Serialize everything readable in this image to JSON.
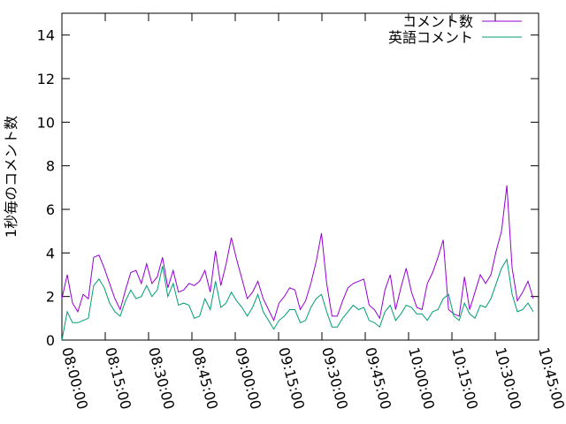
{
  "chart_data": {
    "type": "line",
    "title": "",
    "xlabel": "",
    "ylabel": "1秒毎のコメント数",
    "ylim": [
      0,
      15
    ],
    "xlim": [
      "08:00:00",
      "10:45:00"
    ],
    "grid": false,
    "legend_position": "top-right",
    "y_ticks": [
      "0",
      "2",
      "4",
      "6",
      "8",
      "10",
      "12",
      "14"
    ],
    "x_ticks": [
      "08:00:00",
      "08:15:00",
      "08:30:00",
      "08:45:00",
      "09:00:00",
      "09:15:00",
      "09:30:00",
      "09:45:00",
      "10:00:00",
      "10:15:00",
      "10:30:00",
      "10:45:00"
    ],
    "series": [
      {
        "name": "コメント数",
        "color": "#9400d3",
        "points": [
          [
            "08:00:00",
            1.9
          ],
          [
            "08:01:50",
            3.0
          ],
          [
            "08:03:40",
            1.7
          ],
          [
            "08:05:30",
            1.3
          ],
          [
            "08:07:20",
            2.1
          ],
          [
            "08:09:10",
            1.9
          ],
          [
            "08:11:00",
            3.8
          ],
          [
            "08:12:50",
            3.9
          ],
          [
            "08:14:40",
            3.3
          ],
          [
            "08:16:30",
            2.6
          ],
          [
            "08:18:20",
            1.9
          ],
          [
            "08:20:10",
            1.4
          ],
          [
            "08:22:00",
            2.3
          ],
          [
            "08:23:50",
            3.1
          ],
          [
            "08:25:40",
            3.2
          ],
          [
            "08:27:30",
            2.6
          ],
          [
            "08:29:20",
            3.5
          ],
          [
            "08:31:10",
            2.6
          ],
          [
            "08:33:00",
            2.9
          ],
          [
            "08:34:50",
            3.8
          ],
          [
            "08:36:40",
            2.4
          ],
          [
            "08:38:30",
            3.2
          ],
          [
            "08:40:20",
            2.2
          ],
          [
            "08:42:10",
            2.3
          ],
          [
            "08:44:00",
            2.6
          ],
          [
            "08:45:50",
            2.5
          ],
          [
            "08:47:40",
            2.7
          ],
          [
            "08:49:30",
            3.2
          ],
          [
            "08:51:20",
            2.2
          ],
          [
            "08:53:10",
            4.1
          ],
          [
            "08:55:00",
            2.5
          ],
          [
            "08:56:50",
            3.5
          ],
          [
            "08:58:40",
            4.7
          ],
          [
            "09:00:30",
            3.7
          ],
          [
            "09:02:20",
            2.8
          ],
          [
            "09:04:10",
            1.9
          ],
          [
            "09:06:00",
            2.2
          ],
          [
            "09:07:50",
            2.7
          ],
          [
            "09:09:40",
            1.9
          ],
          [
            "09:11:30",
            1.4
          ],
          [
            "09:13:20",
            0.9
          ],
          [
            "09:15:10",
            1.7
          ],
          [
            "09:17:00",
            2.0
          ],
          [
            "09:18:50",
            2.4
          ],
          [
            "09:20:40",
            2.3
          ],
          [
            "09:22:30",
            1.4
          ],
          [
            "09:24:20",
            1.8
          ],
          [
            "09:26:10",
            2.6
          ],
          [
            "09:28:00",
            3.6
          ],
          [
            "09:29:50",
            4.9
          ],
          [
            "09:31:40",
            2.6
          ],
          [
            "09:33:30",
            1.1
          ],
          [
            "09:35:20",
            1.1
          ],
          [
            "09:37:10",
            1.8
          ],
          [
            "09:39:00",
            2.4
          ],
          [
            "09:40:50",
            2.6
          ],
          [
            "09:42:40",
            2.7
          ],
          [
            "09:44:30",
            2.8
          ],
          [
            "09:46:20",
            1.6
          ],
          [
            "09:48:10",
            1.4
          ],
          [
            "09:50:00",
            1.0
          ],
          [
            "09:51:50",
            2.3
          ],
          [
            "09:53:40",
            3.0
          ],
          [
            "09:55:30",
            1.4
          ],
          [
            "09:57:20",
            2.4
          ],
          [
            "09:59:10",
            3.3
          ],
          [
            "10:01:00",
            2.2
          ],
          [
            "10:02:50",
            1.5
          ],
          [
            "10:04:40",
            1.4
          ],
          [
            "10:06:30",
            2.6
          ],
          [
            "10:08:20",
            3.1
          ],
          [
            "10:10:10",
            3.8
          ],
          [
            "10:12:00",
            4.6
          ],
          [
            "10:13:50",
            1.4
          ],
          [
            "10:15:40",
            1.2
          ],
          [
            "10:17:30",
            1.1
          ],
          [
            "10:19:20",
            2.9
          ],
          [
            "10:21:10",
            1.4
          ],
          [
            "10:23:00",
            2.2
          ],
          [
            "10:24:50",
            3.0
          ],
          [
            "10:26:40",
            2.6
          ],
          [
            "10:28:30",
            3.0
          ],
          [
            "10:30:20",
            4.1
          ],
          [
            "10:32:10",
            5.0
          ],
          [
            "10:34:00",
            7.1
          ],
          [
            "10:35:50",
            3.3
          ],
          [
            "10:37:40",
            1.8
          ],
          [
            "10:39:30",
            2.2
          ],
          [
            "10:41:20",
            2.7
          ],
          [
            "10:43:10",
            1.9
          ]
        ]
      },
      {
        "name": "英語コメント",
        "color": "#009e73",
        "points": [
          [
            "08:00:00",
            0.0
          ],
          [
            "08:01:50",
            1.3
          ],
          [
            "08:03:40",
            0.8
          ],
          [
            "08:05:30",
            0.8
          ],
          [
            "08:07:20",
            0.9
          ],
          [
            "08:09:10",
            1.0
          ],
          [
            "08:11:00",
            2.5
          ],
          [
            "08:12:50",
            2.8
          ],
          [
            "08:14:40",
            2.4
          ],
          [
            "08:16:30",
            1.7
          ],
          [
            "08:18:20",
            1.3
          ],
          [
            "08:20:10",
            1.1
          ],
          [
            "08:22:00",
            1.8
          ],
          [
            "08:23:50",
            2.3
          ],
          [
            "08:25:40",
            1.9
          ],
          [
            "08:27:30",
            2.0
          ],
          [
            "08:29:20",
            2.5
          ],
          [
            "08:31:10",
            2.0
          ],
          [
            "08:33:00",
            2.3
          ],
          [
            "08:34:50",
            3.4
          ],
          [
            "08:36:40",
            2.0
          ],
          [
            "08:38:30",
            2.6
          ],
          [
            "08:40:20",
            1.6
          ],
          [
            "08:42:10",
            1.7
          ],
          [
            "08:44:00",
            1.6
          ],
          [
            "08:45:50",
            1.0
          ],
          [
            "08:47:40",
            1.1
          ],
          [
            "08:49:30",
            1.9
          ],
          [
            "08:51:20",
            1.4
          ],
          [
            "08:53:10",
            2.7
          ],
          [
            "08:55:00",
            1.5
          ],
          [
            "08:56:50",
            1.7
          ],
          [
            "08:58:40",
            2.2
          ],
          [
            "09:00:30",
            1.8
          ],
          [
            "09:02:20",
            1.5
          ],
          [
            "09:04:10",
            1.1
          ],
          [
            "09:06:00",
            1.5
          ],
          [
            "09:07:50",
            2.1
          ],
          [
            "09:09:40",
            1.3
          ],
          [
            "09:11:30",
            0.9
          ],
          [
            "09:13:20",
            0.5
          ],
          [
            "09:15:10",
            0.9
          ],
          [
            "09:17:00",
            1.1
          ],
          [
            "09:18:50",
            1.4
          ],
          [
            "09:20:40",
            1.4
          ],
          [
            "09:22:30",
            0.8
          ],
          [
            "09:24:20",
            0.9
          ],
          [
            "09:26:10",
            1.5
          ],
          [
            "09:28:00",
            1.9
          ],
          [
            "09:29:50",
            2.1
          ],
          [
            "09:31:40",
            1.3
          ],
          [
            "09:33:30",
            0.6
          ],
          [
            "09:35:20",
            0.6
          ],
          [
            "09:37:10",
            1.0
          ],
          [
            "09:39:00",
            1.3
          ],
          [
            "09:40:50",
            1.6
          ],
          [
            "09:42:40",
            1.4
          ],
          [
            "09:44:30",
            1.5
          ],
          [
            "09:46:20",
            0.9
          ],
          [
            "09:48:10",
            0.8
          ],
          [
            "09:50:00",
            0.6
          ],
          [
            "09:51:50",
            1.3
          ],
          [
            "09:53:40",
            1.6
          ],
          [
            "09:55:30",
            0.9
          ],
          [
            "09:57:20",
            1.2
          ],
          [
            "09:59:10",
            1.6
          ],
          [
            "10:01:00",
            1.5
          ],
          [
            "10:02:50",
            1.2
          ],
          [
            "10:04:40",
            1.2
          ],
          [
            "10:06:30",
            0.9
          ],
          [
            "10:08:20",
            1.3
          ],
          [
            "10:10:10",
            1.4
          ],
          [
            "10:12:00",
            1.9
          ],
          [
            "10:13:50",
            2.1
          ],
          [
            "10:15:40",
            1.1
          ],
          [
            "10:17:30",
            0.9
          ],
          [
            "10:19:20",
            1.7
          ],
          [
            "10:21:10",
            1.2
          ],
          [
            "10:23:00",
            1.0
          ],
          [
            "10:24:50",
            1.6
          ],
          [
            "10:26:40",
            1.5
          ],
          [
            "10:28:30",
            1.9
          ],
          [
            "10:30:20",
            2.6
          ],
          [
            "10:32:10",
            3.3
          ],
          [
            "10:34:00",
            3.7
          ],
          [
            "10:35:50",
            2.1
          ],
          [
            "10:37:40",
            1.3
          ],
          [
            "10:39:30",
            1.4
          ],
          [
            "10:41:20",
            1.7
          ],
          [
            "10:43:10",
            1.3
          ]
        ]
      }
    ]
  }
}
